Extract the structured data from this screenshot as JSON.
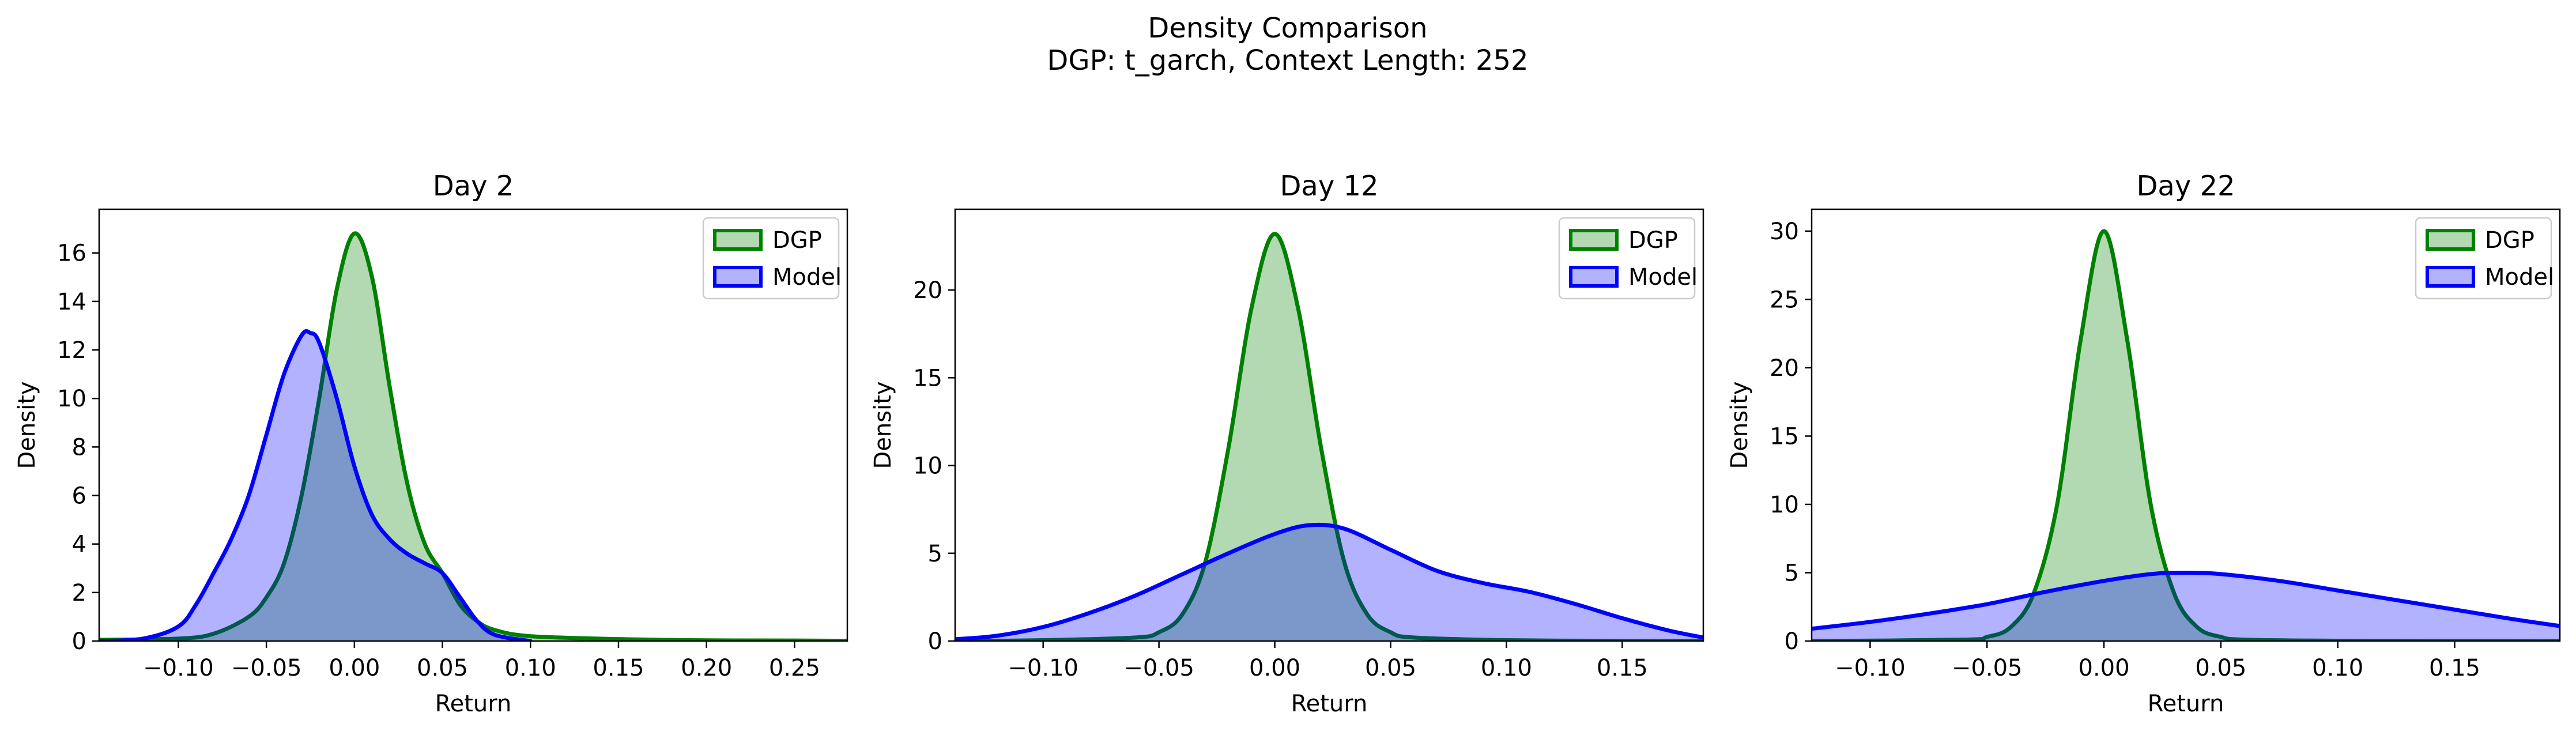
{
  "figure": {
    "title_line1": "Density Comparison",
    "title_line2": "DGP: t_garch, Context Length: 252"
  },
  "colors": {
    "dgp_line": "#008000",
    "dgp_fill": "#008000",
    "model_line": "#0000ff",
    "model_fill": "#0000ff"
  },
  "chart_data": [
    {
      "type": "area",
      "title": "Day 2",
      "xlabel": "Return",
      "ylabel": "Density",
      "xlim": [
        -0.145,
        0.28
      ],
      "ylim": [
        0,
        17.8
      ],
      "xticks": [
        -0.1,
        -0.05,
        0.0,
        0.05,
        0.1,
        0.15,
        0.2,
        0.25
      ],
      "xtick_labels": [
        "−0.10",
        "−0.05",
        "0.00",
        "0.05",
        "0.10",
        "0.15",
        "0.20",
        "0.25"
      ],
      "yticks": [
        0,
        2,
        4,
        6,
        8,
        10,
        12,
        14,
        16
      ],
      "ytick_labels": [
        "0",
        "2",
        "4",
        "6",
        "8",
        "10",
        "12",
        "14",
        "16"
      ],
      "legend_position": "top-right",
      "series": [
        {
          "name": "DGP",
          "x": [
            -0.145,
            -0.1,
            -0.08,
            -0.06,
            -0.05,
            -0.04,
            -0.03,
            -0.02,
            -0.01,
            0.0,
            0.01,
            0.02,
            0.03,
            0.04,
            0.05,
            0.06,
            0.07,
            0.08,
            0.1,
            0.15,
            0.2,
            0.25,
            0.28
          ],
          "y": [
            0.05,
            0.1,
            0.3,
            1.0,
            1.8,
            3.2,
            6.0,
            10.0,
            14.5,
            16.8,
            15.0,
            10.5,
            6.5,
            4.0,
            2.8,
            1.5,
            0.8,
            0.45,
            0.2,
            0.08,
            0.03,
            0.02,
            0.01
          ]
        },
        {
          "name": "Model",
          "x": [
            -0.145,
            -0.12,
            -0.1,
            -0.09,
            -0.08,
            -0.07,
            -0.06,
            -0.05,
            -0.04,
            -0.03,
            -0.025,
            -0.02,
            -0.01,
            0.0,
            0.01,
            0.02,
            0.03,
            0.04,
            0.05,
            0.06,
            0.07,
            0.08,
            0.1
          ],
          "y": [
            0.0,
            0.1,
            0.6,
            1.5,
            2.8,
            4.2,
            6.0,
            8.5,
            11.0,
            12.6,
            12.7,
            12.3,
            10.0,
            7.2,
            5.2,
            4.2,
            3.6,
            3.2,
            2.8,
            1.8,
            0.8,
            0.25,
            0.0
          ]
        }
      ]
    },
    {
      "type": "area",
      "title": "Day 12",
      "xlabel": "Return",
      "ylabel": "Density",
      "xlim": [
        -0.138,
        0.185
      ],
      "ylim": [
        0,
        24.6
      ],
      "xticks": [
        -0.1,
        -0.05,
        0.0,
        0.05,
        0.1,
        0.15
      ],
      "xtick_labels": [
        "−0.10",
        "−0.05",
        "0.00",
        "0.05",
        "0.10",
        "0.15"
      ],
      "yticks": [
        0,
        5,
        10,
        15,
        20
      ],
      "ytick_labels": [
        "0",
        "5",
        "10",
        "15",
        "20"
      ],
      "legend_position": "top-right",
      "series": [
        {
          "name": "DGP",
          "x": [
            -0.138,
            -0.1,
            -0.06,
            -0.05,
            -0.04,
            -0.03,
            -0.02,
            -0.01,
            0.0,
            0.01,
            0.02,
            0.03,
            0.04,
            0.05,
            0.06,
            0.1,
            0.15,
            0.185
          ],
          "y": [
            0.0,
            0.05,
            0.2,
            0.5,
            1.5,
            4.5,
            11.0,
            19.0,
            23.2,
            19.0,
            11.0,
            4.5,
            1.5,
            0.5,
            0.2,
            0.05,
            0.01,
            0.0
          ],
          "stdev_hint": ""
        },
        {
          "name": "Model",
          "x": [
            -0.138,
            -0.12,
            -0.1,
            -0.08,
            -0.06,
            -0.04,
            -0.02,
            0.0,
            0.015,
            0.03,
            0.05,
            0.07,
            0.09,
            0.11,
            0.13,
            0.15,
            0.17,
            0.185
          ],
          "y": [
            0.1,
            0.3,
            0.8,
            1.6,
            2.6,
            3.8,
            5.0,
            6.1,
            6.6,
            6.4,
            5.2,
            4.0,
            3.3,
            2.8,
            2.1,
            1.3,
            0.6,
            0.2
          ]
        }
      ]
    },
    {
      "type": "area",
      "title": "Day 22",
      "xlabel": "Return",
      "ylabel": "Density",
      "xlim": [
        -0.125,
        0.195
      ],
      "ylim": [
        0,
        31.6
      ],
      "xticks": [
        -0.1,
        -0.05,
        0.0,
        0.05,
        0.1,
        0.15
      ],
      "xtick_labels": [
        "−0.10",
        "−0.05",
        "0.00",
        "0.05",
        "0.10",
        "0.15"
      ],
      "yticks": [
        0,
        5,
        10,
        15,
        20,
        25,
        30
      ],
      "ytick_labels": [
        "0",
        "5",
        "10",
        "15",
        "20",
        "25",
        "30"
      ],
      "legend_position": "top-right",
      "series": [
        {
          "name": "DGP",
          "x": [
            -0.125,
            -0.06,
            -0.05,
            -0.04,
            -0.03,
            -0.02,
            -0.01,
            0.0,
            0.01,
            0.02,
            0.03,
            0.04,
            0.05,
            0.06,
            0.1,
            0.195
          ],
          "y": [
            0.0,
            0.1,
            0.3,
            1.0,
            3.5,
            10.0,
            22.0,
            30.0,
            22.0,
            10.0,
            3.5,
            1.0,
            0.3,
            0.1,
            0.02,
            0.0
          ]
        },
        {
          "name": "Model",
          "x": [
            -0.125,
            -0.1,
            -0.075,
            -0.05,
            -0.025,
            0.0,
            0.02,
            0.035,
            0.05,
            0.075,
            0.1,
            0.125,
            0.15,
            0.175,
            0.195
          ],
          "y": [
            0.9,
            1.4,
            2.0,
            2.7,
            3.6,
            4.4,
            4.9,
            5.0,
            4.9,
            4.4,
            3.7,
            3.0,
            2.3,
            1.6,
            1.1
          ]
        }
      ]
    }
  ]
}
